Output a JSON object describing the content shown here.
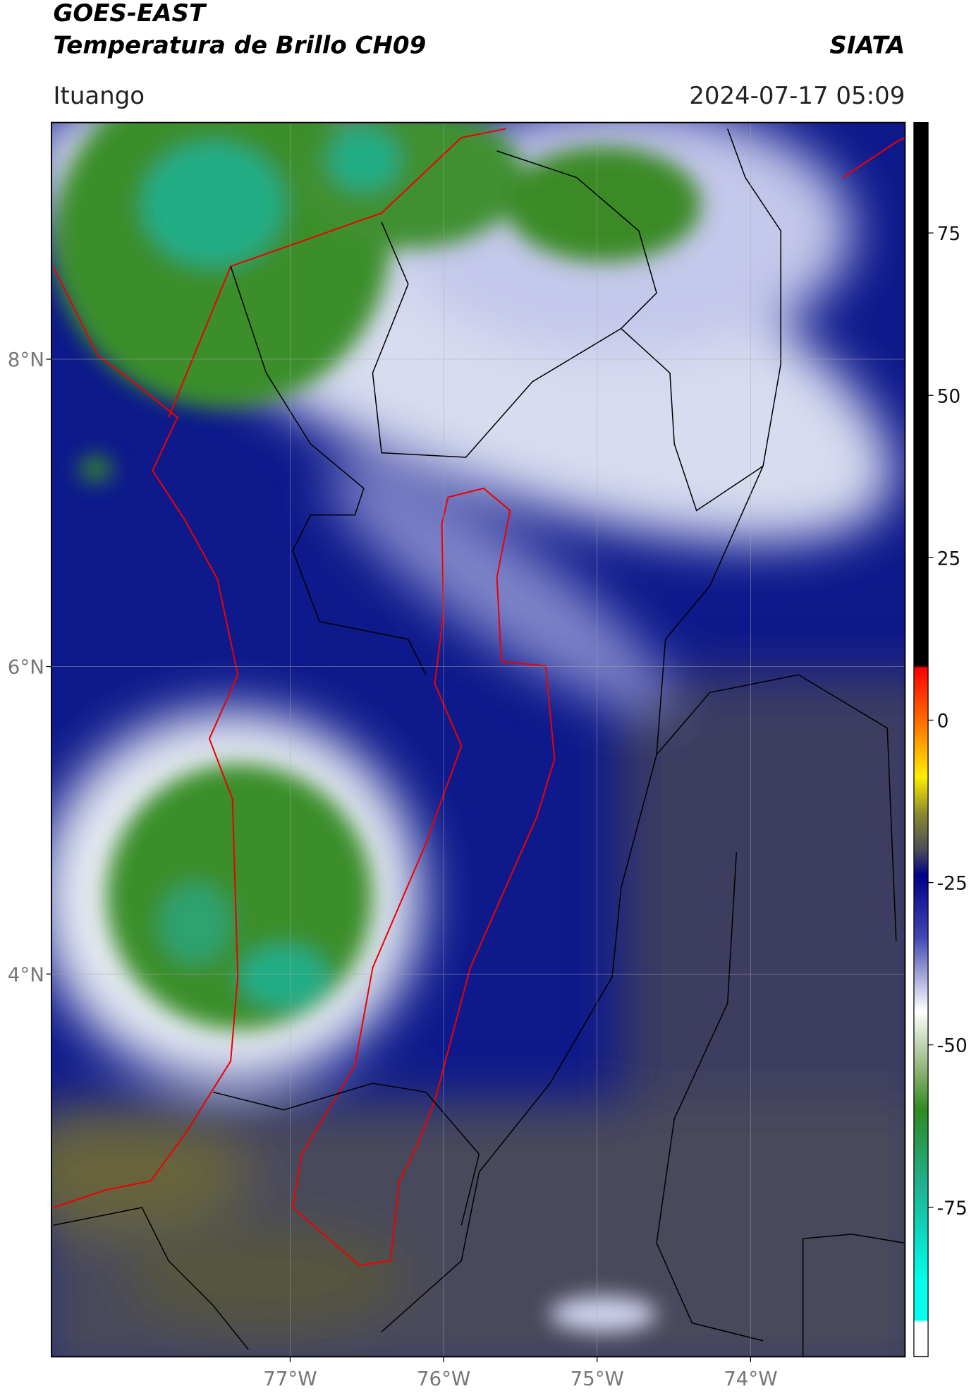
{
  "header": {
    "title_1": "GOES-EAST",
    "title_2": "Temperatura de Brillo CH09",
    "agency": "SIATA",
    "location": "Ituango",
    "datetime": "2024-07-17 05:09"
  },
  "map": {
    "lonlim": [
      -78.555,
      -72.994
    ],
    "latlim": [
      1.51,
      9.54
    ],
    "lonticks": [
      {
        "value": -77,
        "label": "77°W"
      },
      {
        "value": -76,
        "label": "76°W"
      },
      {
        "value": -75,
        "label": "75°W"
      },
      {
        "value": -74,
        "label": "74°W"
      }
    ],
    "latticks": [
      {
        "value": 8,
        "label": "8°N"
      },
      {
        "value": 6,
        "label": "6°N"
      },
      {
        "value": 4,
        "label": "4°N"
      }
    ],
    "grid": true
  },
  "colorbar": {
    "lim": [
      -98,
      92
    ],
    "ticks": [
      75,
      50,
      25,
      0,
      -25,
      -50,
      -75
    ]
  }
}
